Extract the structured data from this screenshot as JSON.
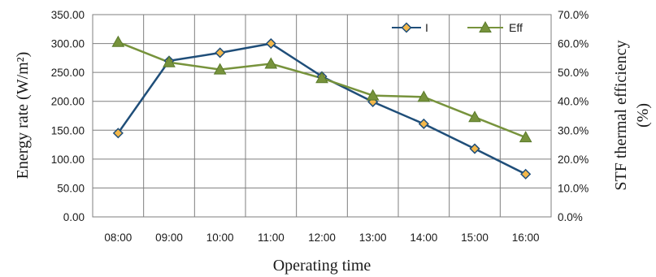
{
  "chart_data": {
    "type": "line",
    "categories": [
      "08:00",
      "09:00",
      "10:00",
      "11:00",
      "12:00",
      "13:00",
      "14:00",
      "15:00",
      "16:00"
    ],
    "xlabel": "Operating time",
    "ylabel_left": "Energy rate (W/m²)",
    "ylabel_right_line1": "STF thermal efficiency",
    "ylabel_right_line2": "(%)",
    "ylim_left": [
      0,
      350
    ],
    "ylim_right": [
      0,
      70
    ],
    "left_ticks": [
      "0.00",
      "50.00",
      "100.00",
      "150.00",
      "200.00",
      "250.00",
      "300.00",
      "350.00"
    ],
    "right_ticks": [
      "0.0%",
      "10.0%",
      "20.0%",
      "30.0%",
      "40.0%",
      "50.0%",
      "60.0%",
      "70.0%"
    ],
    "grid": true,
    "legend_position": "top-right",
    "series": [
      {
        "name": "I",
        "axis": "left",
        "marker": "diamond",
        "line_color": "#1f4e79",
        "marker_fill": "#f4b84a",
        "values": [
          145,
          270,
          284,
          300,
          243,
          199,
          161,
          118,
          74
        ]
      },
      {
        "name": "Eff",
        "axis": "right",
        "marker": "triangle",
        "line_color": "#77933c",
        "marker_fill": "#77933c",
        "values": [
          60.5,
          53.5,
          51,
          53,
          48,
          42,
          41.5,
          34.5,
          27.5
        ]
      }
    ]
  }
}
